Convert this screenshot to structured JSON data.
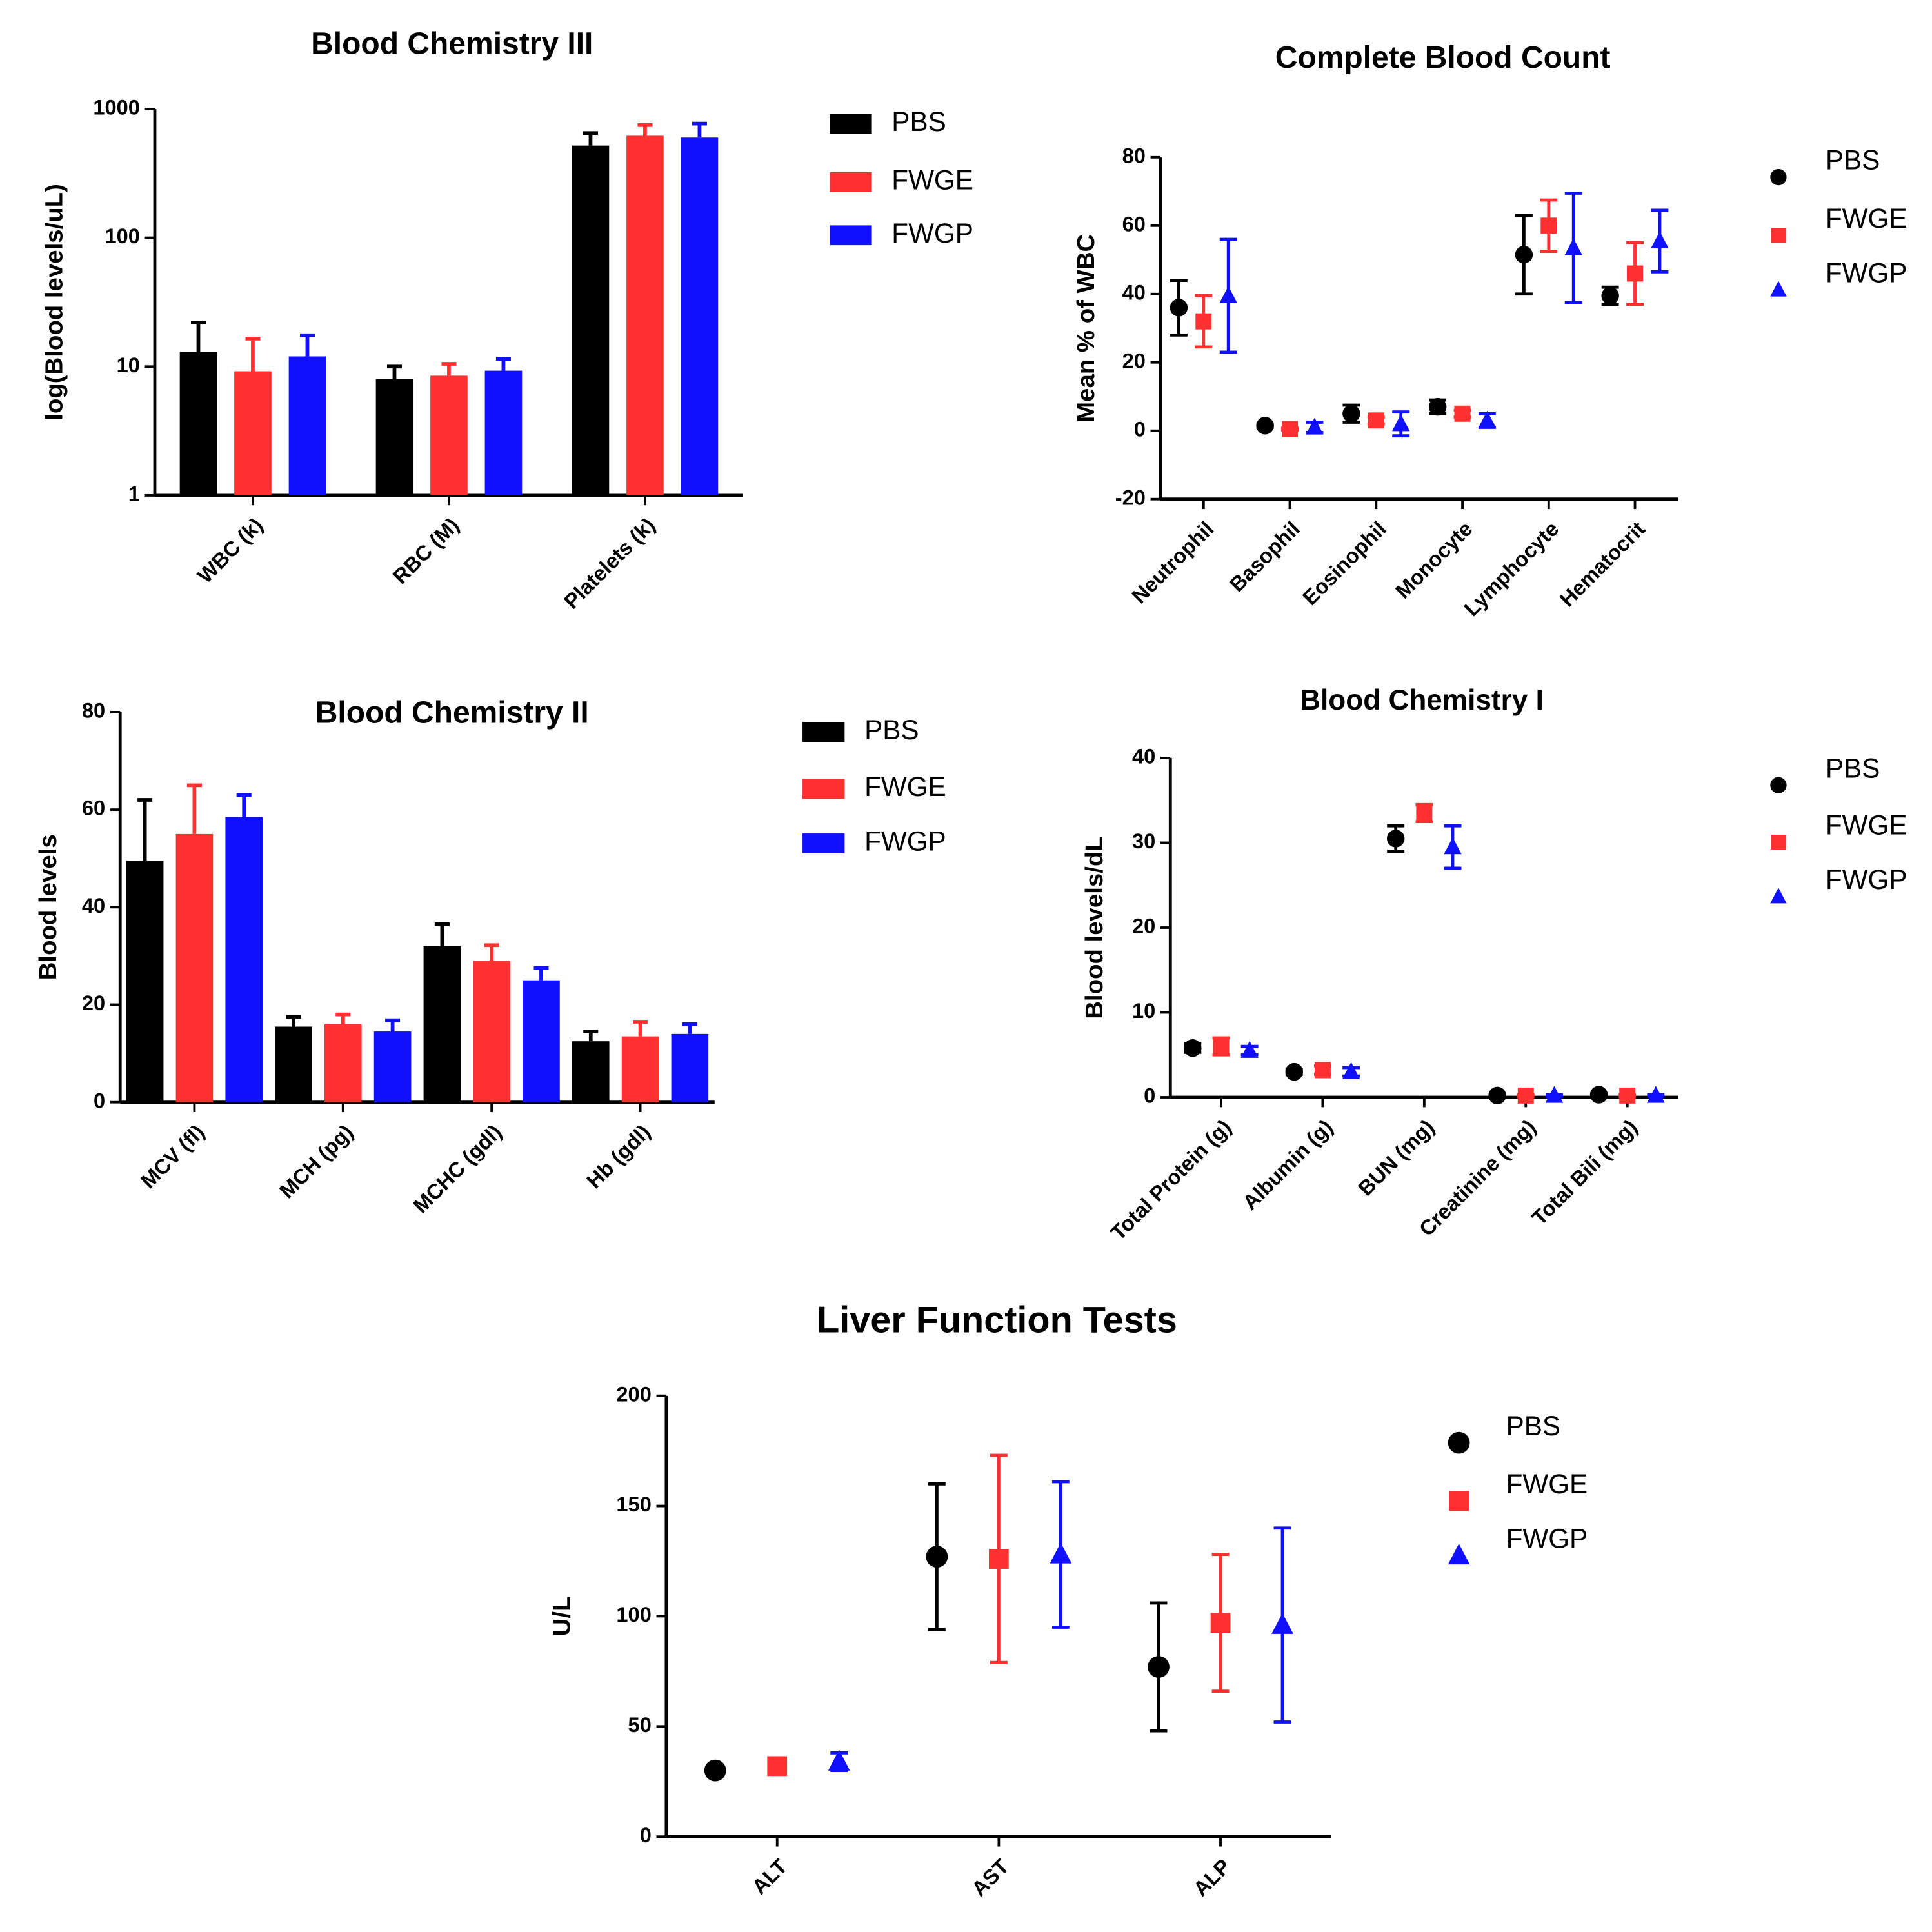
{
  "chart_data": [
    {
      "type": "bar",
      "title": "Blood Chemistry III",
      "y_label": "log(Blood levels/uL)",
      "log_scale": true,
      "categories": [
        "WBC (k)",
        "RBC (M)",
        "Platelets (k)"
      ],
      "ylim": [
        1,
        1000
      ],
      "yticks": [
        1,
        10,
        100,
        1000
      ],
      "series": [
        {
          "name": "PBS",
          "color": "#000000",
          "values": [
            13,
            8,
            520
          ],
          "errors": [
            9,
            2,
            130
          ]
        },
        {
          "name": "FWGE",
          "color": "#ff3030",
          "values": [
            9.2,
            8.5,
            620
          ],
          "errors": [
            7.3,
            2,
            130
          ]
        },
        {
          "name": "FWGP",
          "color": "#1010ff",
          "values": [
            12,
            9.3,
            600
          ],
          "errors": [
            5.5,
            2.2,
            170
          ]
        }
      ]
    },
    {
      "type": "scatter",
      "title": "Complete Blood Count",
      "y_label": "Mean % of WBC",
      "categories": [
        "Neutrophil",
        "Basophil",
        "Eosinophil",
        "Monocyte",
        "Lymphocyte",
        "Hematocrit"
      ],
      "ylim": [
        -20,
        80
      ],
      "yticks": [
        -20,
        0,
        20,
        40,
        60,
        80
      ],
      "series": [
        {
          "name": "PBS",
          "color": "#000000",
          "marker": "circle",
          "values": [
            36,
            1.5,
            5,
            7,
            51.5,
            39.5
          ],
          "errors": [
            8,
            0.5,
            2.5,
            2,
            11.5,
            2.5
          ]
        },
        {
          "name": "FWGE",
          "color": "#ff3030",
          "marker": "square",
          "values": [
            32,
            0.5,
            3,
            5,
            60,
            46
          ],
          "errors": [
            7.5,
            0.3,
            1,
            1,
            7.5,
            9
          ]
        },
        {
          "name": "FWGP",
          "color": "#1010ff",
          "marker": "triangle",
          "values": [
            39.5,
            1,
            2,
            3,
            53.5,
            55.5
          ],
          "errors": [
            16.5,
            1.5,
            3.5,
            2,
            16,
            9
          ]
        }
      ]
    },
    {
      "type": "bar",
      "title": "Blood Chemistry II",
      "y_label": "Blood levels",
      "categories": [
        "MCV (fl)",
        "MCH (pg)",
        "MCHC (gdl)",
        "Hb (gdl)"
      ],
      "ylim": [
        0,
        80
      ],
      "yticks": [
        0,
        20,
        40,
        60,
        80
      ],
      "series": [
        {
          "name": "PBS",
          "color": "#000000",
          "values": [
            49.5,
            15.5,
            32,
            12.5
          ],
          "errors": [
            12.5,
            2,
            4.5,
            2
          ]
        },
        {
          "name": "FWGE",
          "color": "#ff3030",
          "values": [
            55,
            16,
            29,
            13.5
          ],
          "errors": [
            10,
            2,
            3.2,
            3
          ]
        },
        {
          "name": "FWGP",
          "color": "#1010ff",
          "values": [
            58.5,
            14.5,
            25,
            14
          ],
          "errors": [
            4.5,
            2.3,
            2.5,
            2
          ]
        }
      ]
    },
    {
      "type": "scatter",
      "title": "Blood Chemistry I",
      "y_label": "Blood levels/dL",
      "categories": [
        "Total Protein (g)",
        "Albumin (g)",
        "BUN (mg)",
        "Creatinine (mg)",
        "Total Bili (mg)"
      ],
      "ylim": [
        0,
        40
      ],
      "yticks": [
        0,
        10,
        20,
        30,
        40
      ],
      "series": [
        {
          "name": "PBS",
          "color": "#000000",
          "marker": "circle",
          "values": [
            5.8,
            3,
            30.5,
            0.2,
            0.3
          ],
          "errors": [
            0.5,
            0.3,
            1.5,
            0.1,
            0.1
          ]
        },
        {
          "name": "FWGE",
          "color": "#ff3030",
          "marker": "square",
          "values": [
            6,
            3.2,
            33.5,
            0.2,
            0.2
          ],
          "errors": [
            1,
            0.5,
            1,
            0.1,
            0.1
          ]
        },
        {
          "name": "FWGP",
          "color": "#1010ff",
          "marker": "triangle",
          "values": [
            5.5,
            3,
            29.5,
            0.2,
            0.2
          ],
          "errors": [
            0.5,
            0.5,
            2.5,
            0.1,
            0.1
          ]
        }
      ]
    },
    {
      "type": "scatter",
      "title": "Liver Function  Tests",
      "y_label": "U/L",
      "categories": [
        "ALT",
        "AST",
        "ALP"
      ],
      "ylim": [
        0,
        200
      ],
      "yticks": [
        0,
        50,
        100,
        150,
        200
      ],
      "series": [
        {
          "name": "PBS",
          "color": "#000000",
          "marker": "circle",
          "values": [
            30,
            127,
            77
          ],
          "errors": [
            1,
            33,
            29
          ]
        },
        {
          "name": "FWGE",
          "color": "#ff3030",
          "marker": "square",
          "values": [
            32,
            126,
            97
          ],
          "errors": [
            2,
            47,
            31
          ]
        },
        {
          "name": "FWGP",
          "color": "#1010ff",
          "marker": "triangle",
          "values": [
            34,
            128,
            96
          ],
          "errors": [
            4,
            33,
            44
          ]
        }
      ]
    }
  ]
}
